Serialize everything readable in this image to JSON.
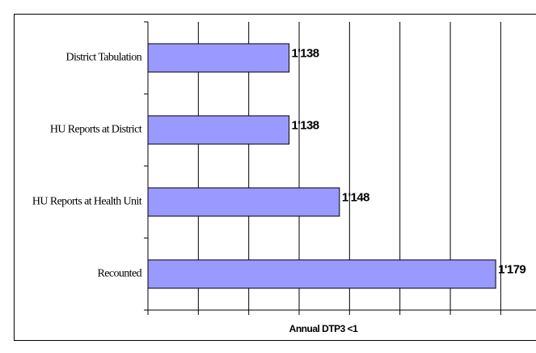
{
  "chart_data": {
    "type": "barh",
    "x_label": "Annual DTP3 <1",
    "categories": [
      "District Tabulation",
      "HU Reports at District",
      "HU Reports at Health Unit",
      "Recounted"
    ],
    "values": [
      1138,
      1138,
      1148,
      1179
    ],
    "value_labels": [
      "1'138",
      "1'138",
      "1'148",
      "1'179"
    ],
    "color": "#9999ff",
    "xlim": [
      1110,
      1187
    ],
    "xticks": [
      1110,
      1120,
      1130,
      1140,
      1150,
      1160,
      1170,
      1180
    ],
    "grid": true
  }
}
